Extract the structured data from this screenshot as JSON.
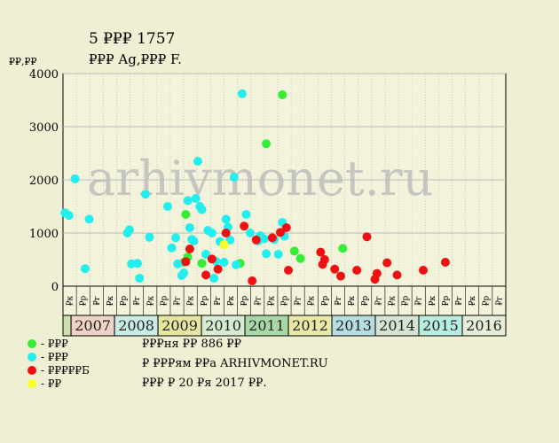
{
  "page": {
    "title": "5 ₽₽₽ 1757",
    "subtitle": "₽₽₽ Ag,₽₽₽ F.",
    "watermark": "arhivmonet.ru",
    "info_lines": [
      "₽₽₽ня ₽₽ 886 ₽₽",
      "₽ ₽₽₽ям ₽₽а ARHIVMONET.RU",
      "₽₽₽ ₽ 20 ₽я 2017 ₽₽."
    ]
  },
  "colors": {
    "background": "#efefd3",
    "plot_bg": "#f3f3dc",
    "grid": "#bcbcbc",
    "year_odd": "#f3d7c9",
    "year_even": "#cdeee0",
    "year_alt1": "#e8e8a0",
    "year_alt2": "#bde0d8"
  },
  "chart_data": {
    "type": "scatter",
    "ylabel": "₽₽,₽₽",
    "ylim": [
      0,
      4000
    ],
    "yticks": [
      0,
      1000,
      2000,
      3000,
      4000
    ],
    "xlim": [
      2006.0,
      2017.0
    ],
    "quarter_labels": [
      "₽к",
      "₽р",
      "₽г",
      "₽к",
      "₽р",
      "₽г",
      "₽к",
      "₽р",
      "₽г",
      "₽к",
      "₽р",
      "₽г",
      "₽к",
      "₽р",
      "₽г",
      "₽к",
      "₽р",
      "₽г",
      "₽к",
      "₽р",
      "₽г",
      "₽к",
      "₽р",
      "₽г",
      "₽к",
      "₽р",
      "₽г",
      "₽к",
      "₽р",
      "₽г",
      "₽к",
      "₽р",
      "₽г"
    ],
    "years": [
      {
        "label": "",
        "color": "#cfe0b0"
      },
      {
        "label": "2007",
        "color": "#f0d3c6"
      },
      {
        "label": "2008",
        "color": "#c9ece4"
      },
      {
        "label": "2009",
        "color": "#e6e6a0"
      },
      {
        "label": "2010",
        "color": "#d7ecd0"
      },
      {
        "label": "2011",
        "color": "#a9d8a6"
      },
      {
        "label": "2012",
        "color": "#e8e8a8"
      },
      {
        "label": "2013",
        "color": "#b6dde0"
      },
      {
        "label": "2014",
        "color": "#d8e4d2"
      },
      {
        "label": "2015",
        "color": "#b8eee0"
      },
      {
        "label": "2016",
        "color": "#e6eed8"
      }
    ],
    "grid": true,
    "legend_position": "bottom-left",
    "series": [
      {
        "name": "- ₽₽₽",
        "color": "#33ee33",
        "points": [
          [
            2009.0,
            450
          ],
          [
            2009.05,
            1350
          ],
          [
            2009.1,
            550
          ],
          [
            2009.45,
            430
          ],
          [
            2010.4,
            430
          ],
          [
            2011.05,
            2680
          ],
          [
            2011.45,
            3600
          ],
          [
            2011.75,
            660
          ],
          [
            2011.9,
            520
          ],
          [
            2012.95,
            710
          ]
        ]
      },
      {
        "name": "- ₽₽₽",
        "color": "#22eeee",
        "points": [
          [
            2006.05,
            1380
          ],
          [
            2006.15,
            1330
          ],
          [
            2006.3,
            2020
          ],
          [
            2006.55,
            330
          ],
          [
            2006.65,
            1260
          ],
          [
            2007.6,
            1000
          ],
          [
            2007.65,
            1060
          ],
          [
            2007.7,
            420
          ],
          [
            2007.85,
            430
          ],
          [
            2007.9,
            150
          ],
          [
            2008.05,
            1730
          ],
          [
            2008.15,
            920
          ],
          [
            2008.6,
            1500
          ],
          [
            2008.7,
            720
          ],
          [
            2008.8,
            910
          ],
          [
            2008.85,
            420
          ],
          [
            2008.95,
            200
          ],
          [
            2009.0,
            250
          ],
          [
            2009.1,
            1610
          ],
          [
            2009.15,
            1100
          ],
          [
            2009.2,
            880
          ],
          [
            2009.25,
            850
          ],
          [
            2009.3,
            1650
          ],
          [
            2009.35,
            2350
          ],
          [
            2009.4,
            1500
          ],
          [
            2009.45,
            1440
          ],
          [
            2009.55,
            600
          ],
          [
            2009.6,
            1050
          ],
          [
            2009.7,
            1000
          ],
          [
            2009.75,
            150
          ],
          [
            2009.8,
            470
          ],
          [
            2009.9,
            840
          ],
          [
            2010.0,
            450
          ],
          [
            2010.05,
            1260
          ],
          [
            2010.1,
            1110
          ],
          [
            2010.15,
            870
          ],
          [
            2010.25,
            2050
          ],
          [
            2010.3,
            400
          ],
          [
            2010.45,
            3620
          ],
          [
            2010.55,
            1350
          ],
          [
            2010.65,
            1000
          ],
          [
            2010.85,
            850
          ],
          [
            2010.9,
            950
          ],
          [
            2011.0,
            890
          ],
          [
            2011.05,
            610
          ],
          [
            2011.25,
            880
          ],
          [
            2011.35,
            600
          ],
          [
            2011.45,
            1200
          ],
          [
            2011.5,
            940
          ]
        ]
      },
      {
        "name": "- ₽₽₽₽₽Б",
        "color": "#ee1111",
        "points": [
          [
            2009.05,
            460
          ],
          [
            2009.15,
            700
          ],
          [
            2009.55,
            210
          ],
          [
            2009.7,
            510
          ],
          [
            2009.85,
            320
          ],
          [
            2010.05,
            1000
          ],
          [
            2010.5,
            1130
          ],
          [
            2010.7,
            100
          ],
          [
            2010.8,
            870
          ],
          [
            2011.2,
            910
          ],
          [
            2011.4,
            1010
          ],
          [
            2011.55,
            1100
          ],
          [
            2011.6,
            300
          ],
          [
            2012.4,
            640
          ],
          [
            2012.5,
            500
          ],
          [
            2012.45,
            410
          ],
          [
            2012.75,
            320
          ],
          [
            2012.9,
            190
          ],
          [
            2013.3,
            300
          ],
          [
            2013.55,
            930
          ],
          [
            2013.75,
            130
          ],
          [
            2013.8,
            240
          ],
          [
            2014.05,
            440
          ],
          [
            2014.3,
            210
          ],
          [
            2014.95,
            300
          ],
          [
            2015.5,
            450
          ]
        ]
      },
      {
        "name": "- ₽₽",
        "color": "#ffff22",
        "points": [
          [
            2010.0,
            780
          ]
        ]
      }
    ]
  }
}
